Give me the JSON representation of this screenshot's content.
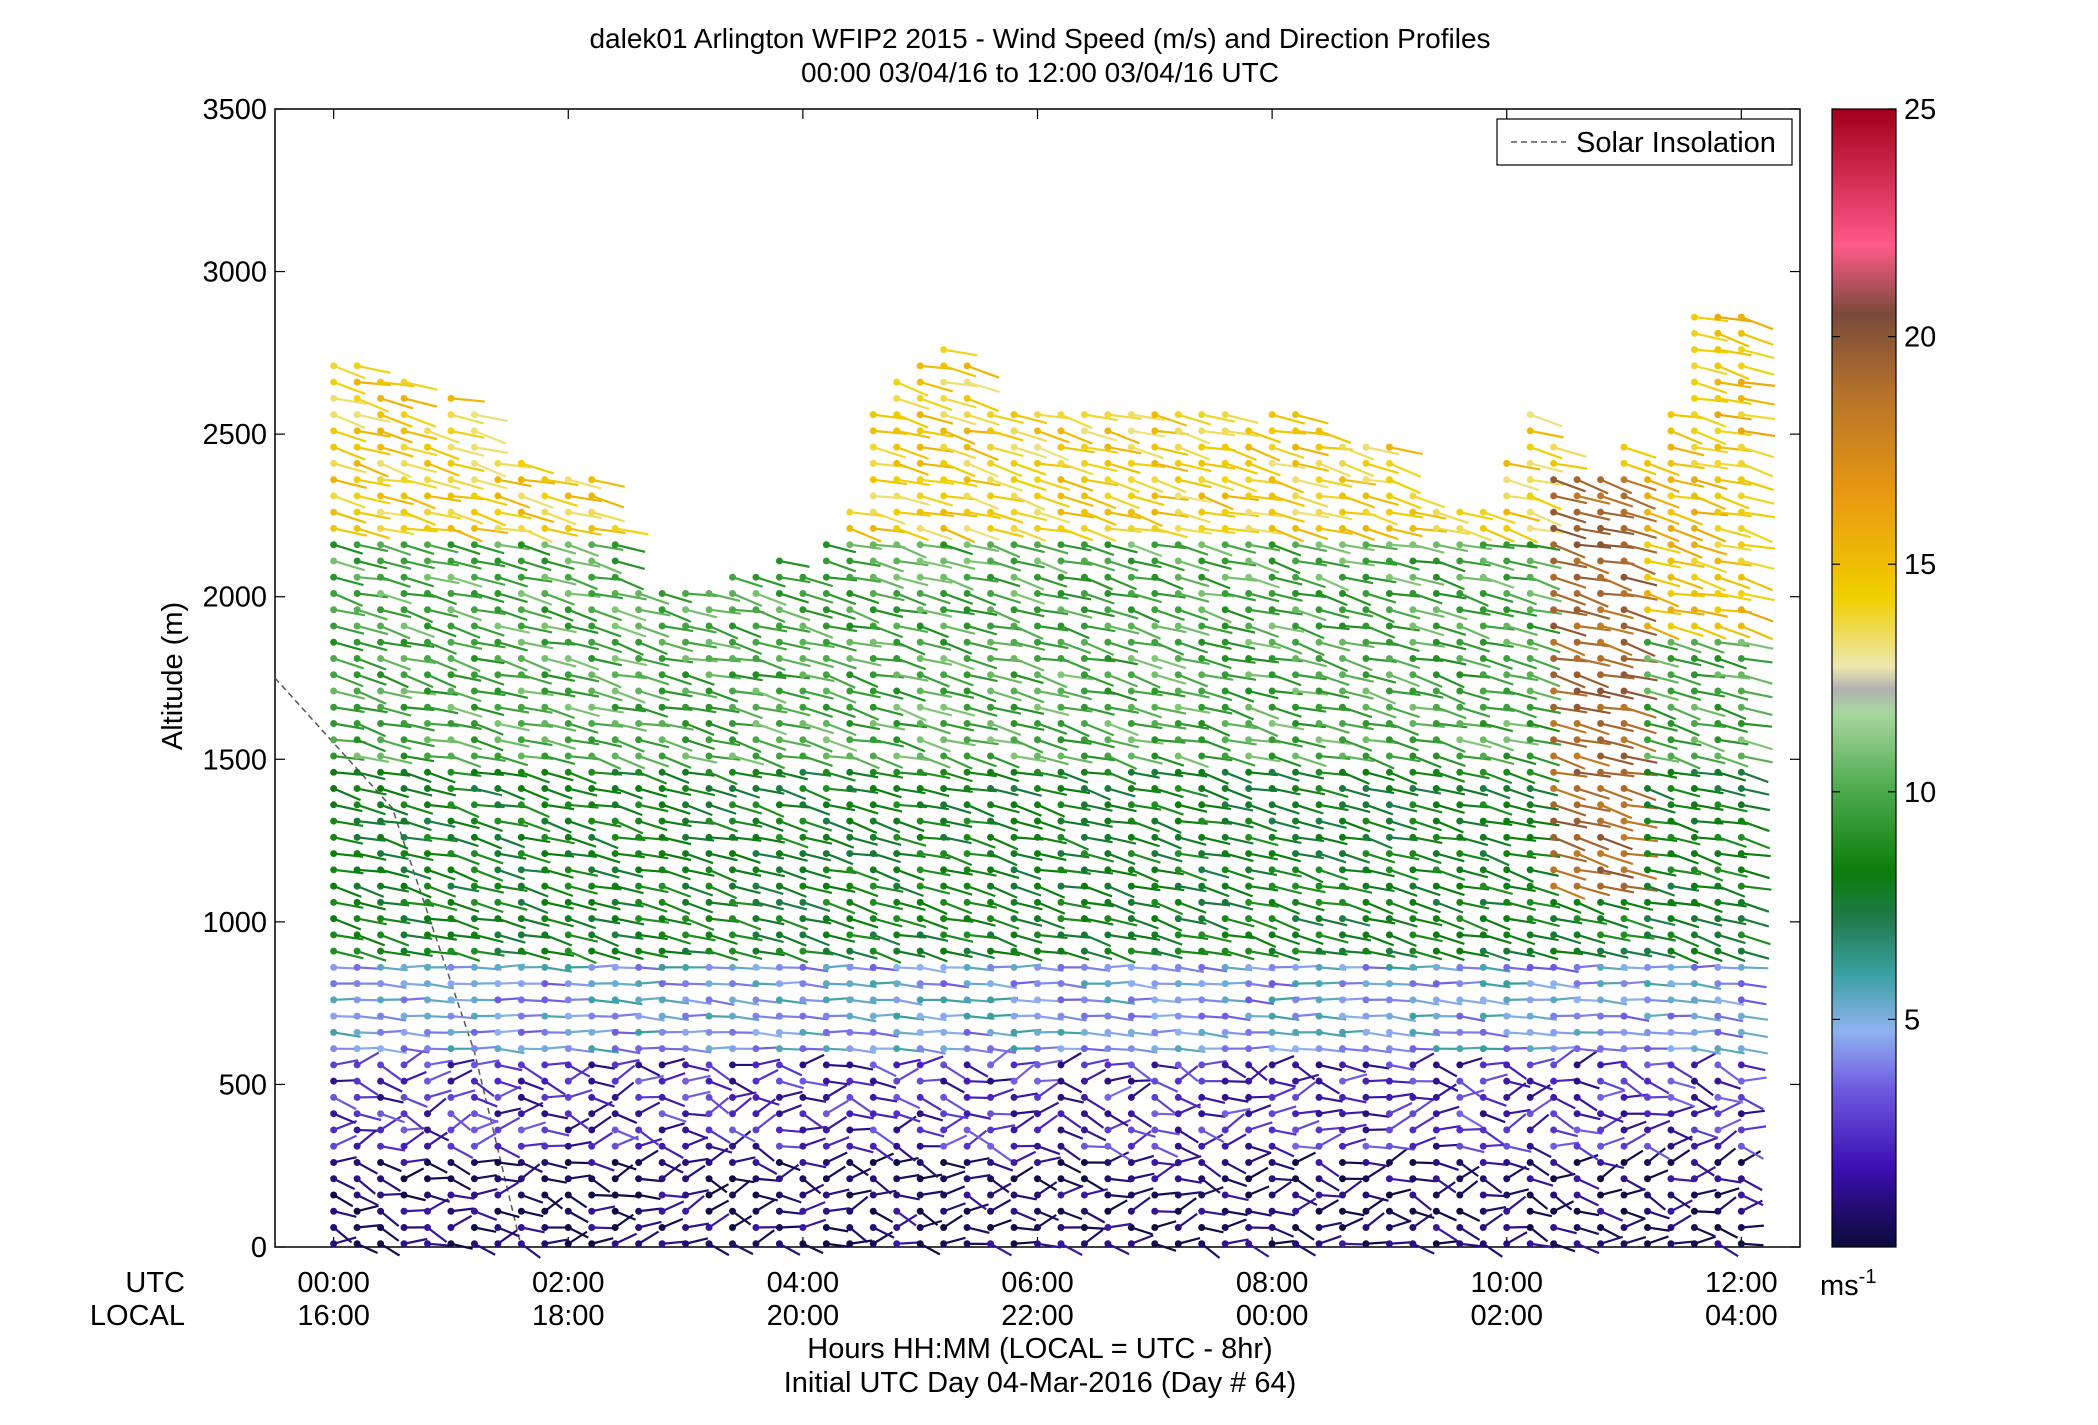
{
  "chart_data": {
    "type": "wind-barb-profile",
    "title": "dalek01 Arlington WFIP2 2015 - Wind Speed (m/s) and Direction Profiles",
    "subtitle": "00:00 03/04/16 to 12:00 03/04/16  UTC",
    "ylabel": "Altitude (m)",
    "xlabel": "Hours HH:MM  (LOCAL = UTC - 8hr)",
    "xlabel2": "Initial UTC Day 04-Mar-2016 (Day # 64)",
    "utc_label": "UTC",
    "local_label": "LOCAL",
    "x_ticks_utc": [
      "00:00",
      "02:00",
      "04:00",
      "06:00",
      "08:00",
      "10:00",
      "12:00"
    ],
    "x_ticks_local": [
      "16:00",
      "18:00",
      "20:00",
      "22:00",
      "00:00",
      "02:00",
      "04:00"
    ],
    "x_tick_hours": [
      0,
      2,
      4,
      6,
      8,
      10,
      12
    ],
    "xlim_hours": [
      -0.5,
      12.5
    ],
    "ylim": [
      0,
      3500
    ],
    "y_ticks": [
      0,
      500,
      1000,
      1500,
      2000,
      2500,
      3000,
      3500
    ],
    "legend": {
      "entries": [
        "Solar Insolation"
      ],
      "placement": "top-right"
    },
    "colorbar": {
      "ticks": [
        5,
        10,
        15,
        20,
        25
      ],
      "range": [
        0,
        25
      ],
      "unit_label": "ms",
      "unit_exp": "-1"
    },
    "solar_insolation_line": {
      "x_hours": [
        -0.5,
        0.5,
        1.2,
        1.6
      ],
      "altitude": [
        1750,
        1350,
        600,
        0
      ]
    },
    "profiles": {
      "time_hours": [
        0.0,
        0.2,
        0.4,
        0.6,
        0.8,
        1.0,
        1.2,
        1.4,
        1.6,
        1.8,
        2.0,
        2.2,
        2.4,
        2.6,
        2.8,
        3.0,
        3.2,
        3.4,
        3.6,
        3.8,
        4.0,
        4.2,
        4.4,
        4.6,
        4.8,
        5.0,
        5.2,
        5.4,
        5.6,
        5.8,
        6.0,
        6.2,
        6.4,
        6.6,
        6.8,
        7.0,
        7.2,
        7.4,
        7.6,
        7.8,
        8.0,
        8.2,
        8.4,
        8.6,
        8.8,
        9.0,
        9.2,
        9.4,
        9.6,
        9.8,
        10.0,
        10.2,
        10.4,
        10.6,
        10.8,
        11.0,
        11.2,
        11.4,
        11.6,
        11.8,
        12.0
      ],
      "top_altitude_m": [
        2730,
        2730,
        2680,
        2680,
        2540,
        2640,
        2560,
        2440,
        2420,
        2400,
        2400,
        2360,
        2250,
        2050,
        2020,
        2030,
        2050,
        2060,
        2100,
        2140,
        2100,
        2200,
        2280,
        2560,
        2680,
        2720,
        2800,
        2720,
        2600,
        2580,
        2580,
        2600,
        2580,
        2560,
        2560,
        2560,
        2560,
        2580,
        2560,
        2540,
        2580,
        2560,
        2540,
        2500,
        2480,
        2480,
        2320,
        2280,
        2280,
        2300,
        2440,
        2600,
        2480,
        2380,
        2380,
        2480,
        2440,
        2600,
        2900,
        2900,
        2900
      ],
      "wind_levels": [
        {
          "min_alt": 2200,
          "max_alt": 3000,
          "speed_ms": 14.5
        },
        {
          "min_alt": 1500,
          "max_alt": 2200,
          "speed_ms": 9.5
        },
        {
          "min_alt": 900,
          "max_alt": 1500,
          "speed_ms": 7.5
        },
        {
          "min_alt": 600,
          "max_alt": 900,
          "speed_ms": 4.5
        },
        {
          "min_alt": 300,
          "max_alt": 600,
          "speed_ms": 2.5
        },
        {
          "min_alt": 0,
          "max_alt": 300,
          "speed_ms": 1.0
        }
      ]
    }
  }
}
